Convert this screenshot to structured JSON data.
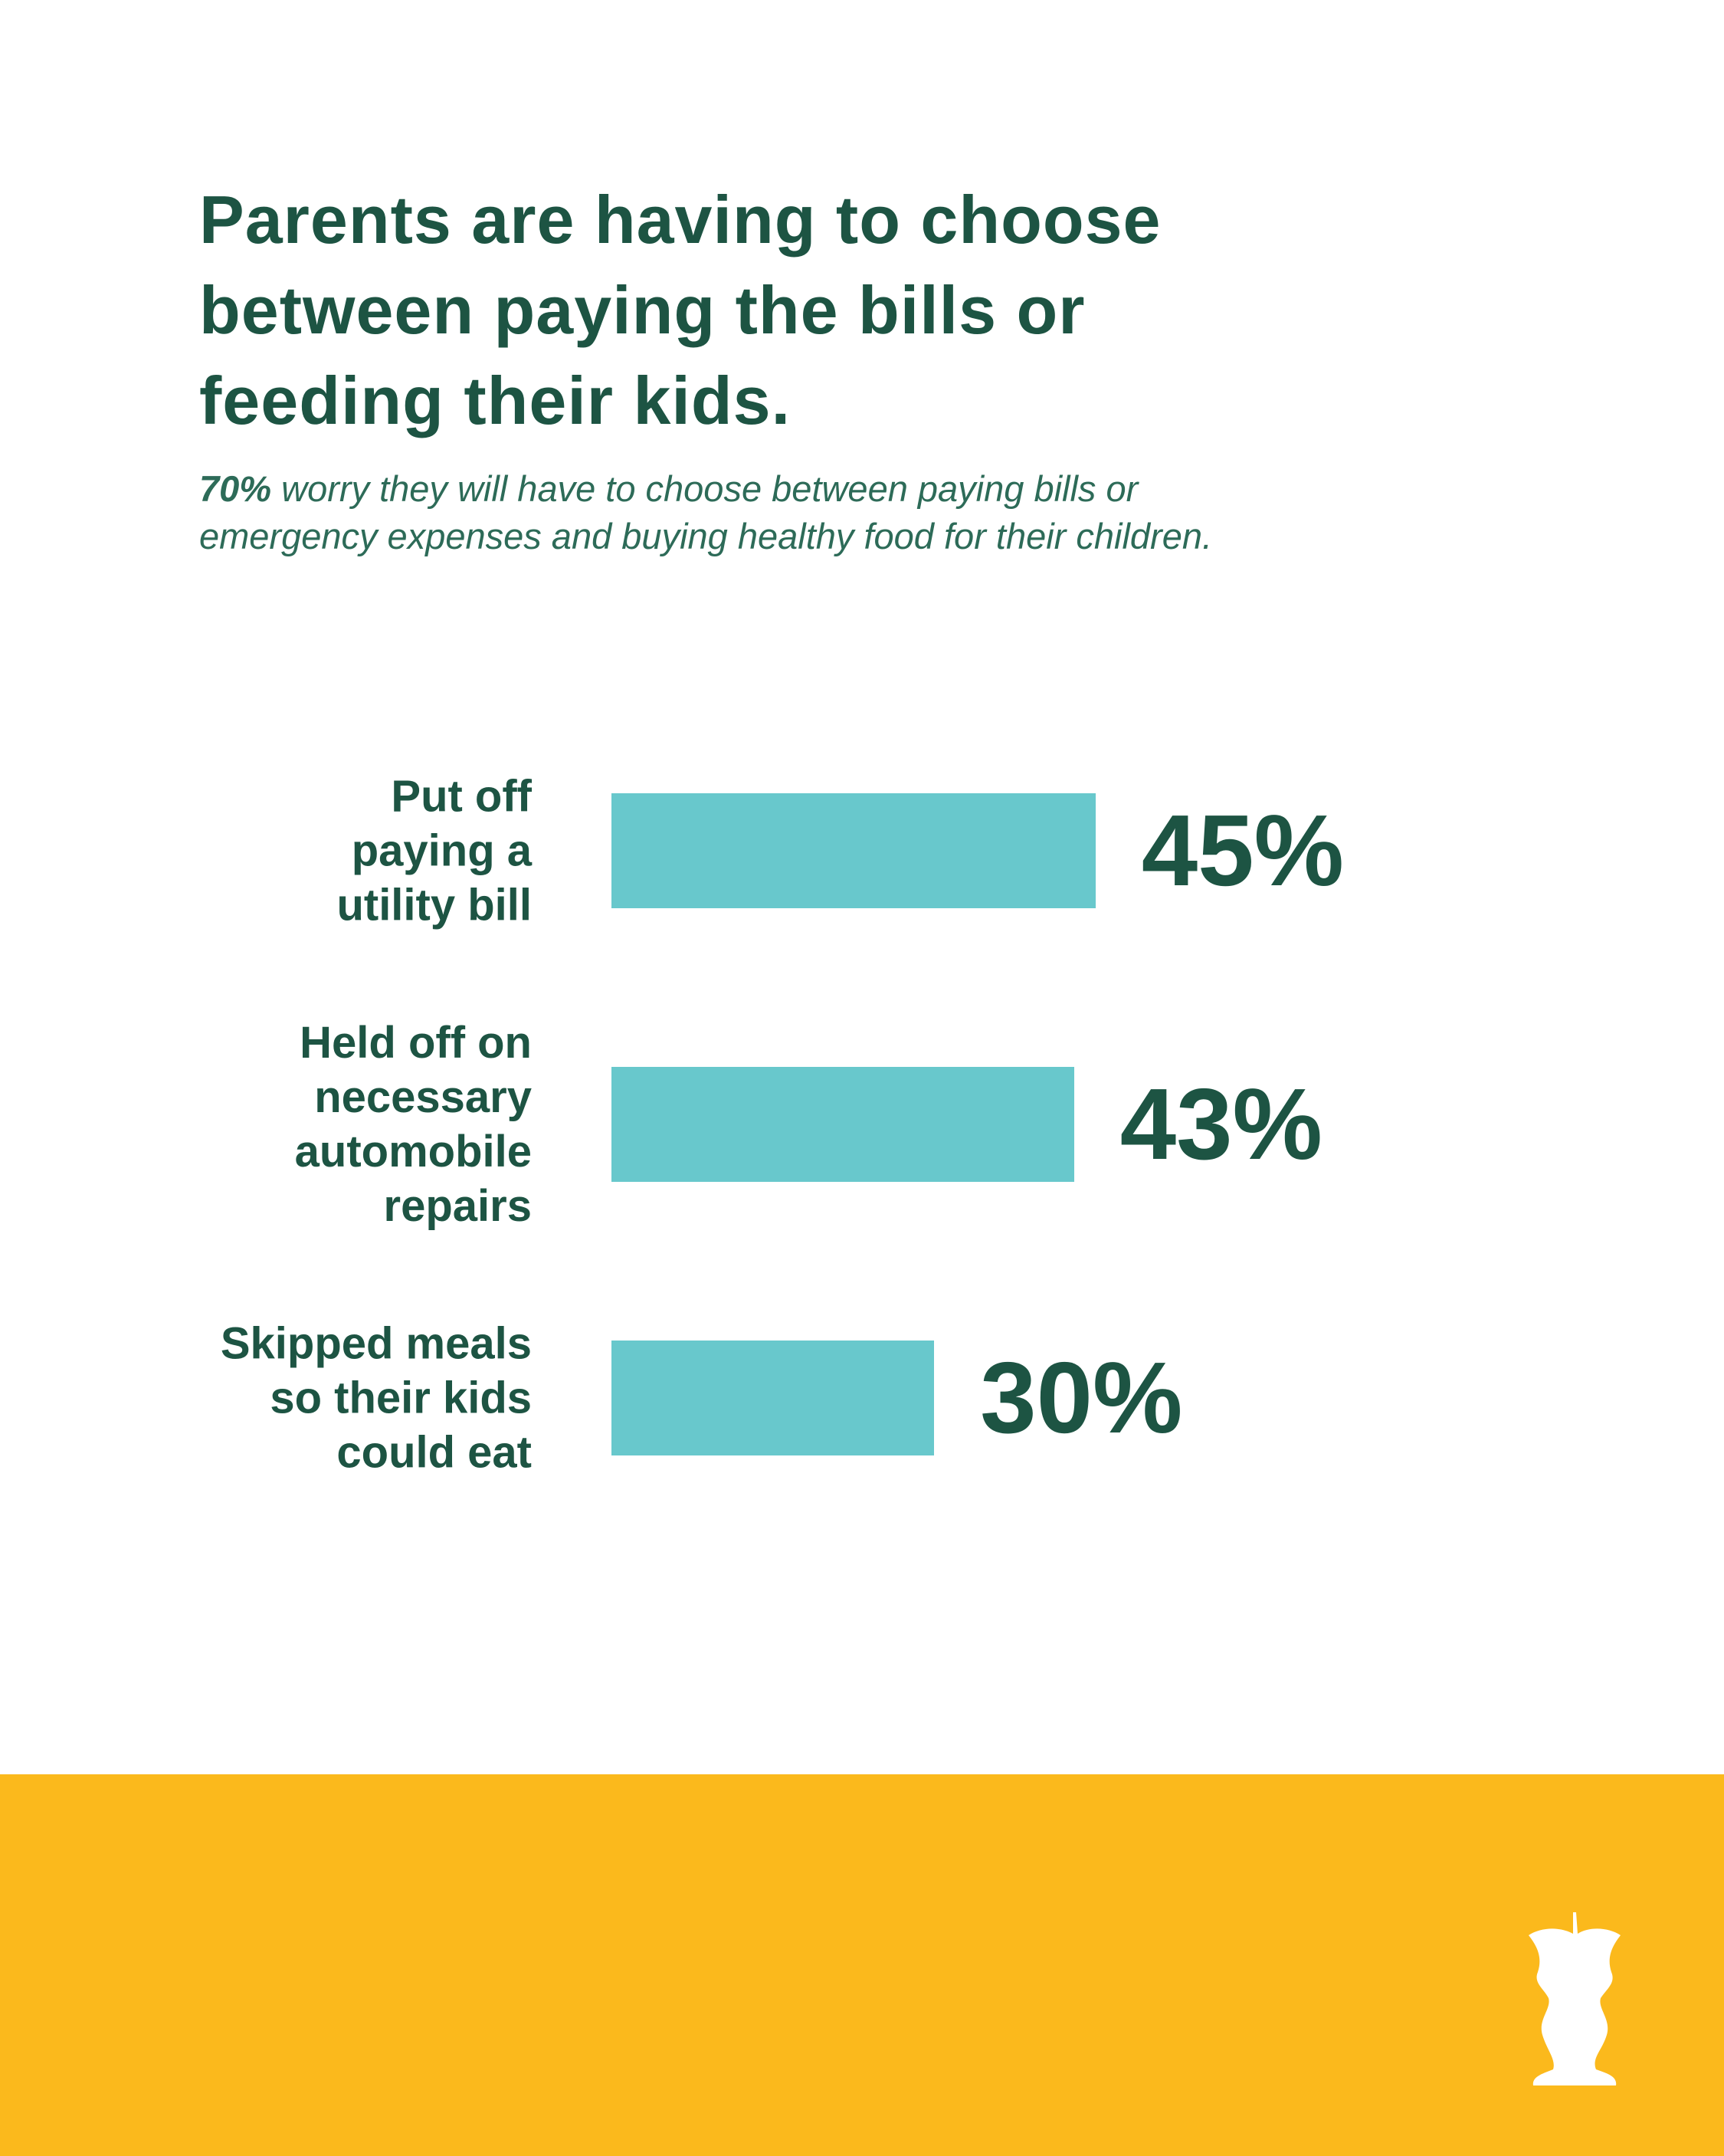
{
  "chart_data": {
    "type": "bar",
    "title": "Parents are having to choose\nbetween paying the bills or\nfeeding their kids.",
    "subtitle": {
      "emphasis": "70%",
      "text": "worry they will have to choose between paying bills or\nemergency expenses and buying healthy food for their children."
    },
    "categories": [
      "Put off\npaying a\nutility bill",
      "Held off on\nnecessary\nautomobile\nrepairs",
      "Skipped meals\nso their kids\ncould eat"
    ],
    "values": [
      45,
      43,
      30
    ],
    "value_labels": [
      "45%",
      "43%",
      "30%"
    ],
    "color": "#68c8cc"
  }
}
